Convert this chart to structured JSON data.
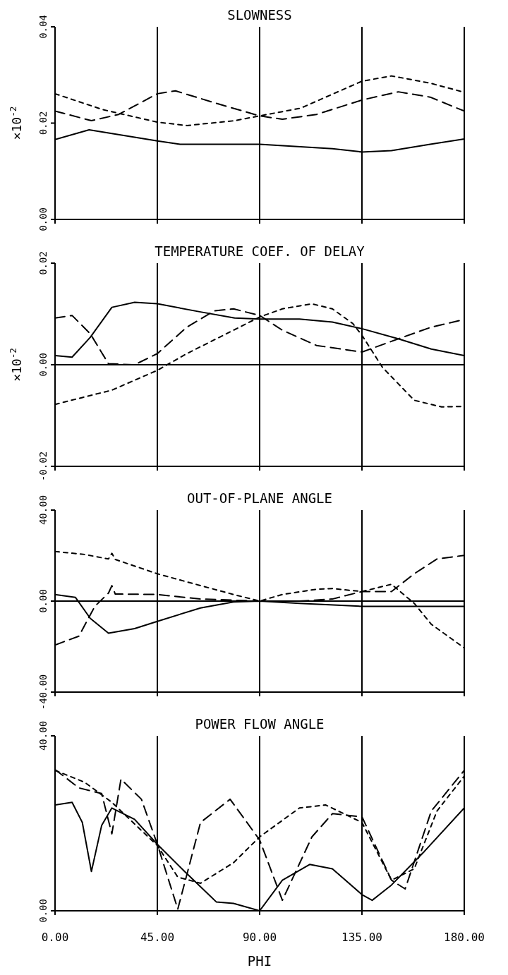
{
  "chart_data": [
    {
      "type": "line",
      "title": "SLOWNESS",
      "ylabel": "×10$^{-2}$",
      "xlim": [
        0,
        180
      ],
      "xticks": [
        0,
        45,
        90,
        135,
        180
      ],
      "ylim": [
        0,
        0.04
      ],
      "yticks": [
        {
          "value": 0,
          "label": "0.00"
        },
        {
          "value": 0.02,
          "label": "0.02"
        },
        {
          "value": 0.04,
          "label": "0.04"
        }
      ],
      "grid": "x",
      "tick_labels": "y",
      "series": [
        {
          "color": "#000000",
          "line_style": "solid",
          "x": [
            0,
            15,
            45,
            55,
            90,
            122,
            135,
            148,
            165,
            180
          ],
          "values": [
            0.0166,
            0.0186,
            0.0163,
            0.0156,
            0.0156,
            0.0147,
            0.014,
            0.0143,
            0.0156,
            0.0167
          ]
        },
        {
          "color": "#000000",
          "line_style": "dashed",
          "x": [
            0,
            16,
            28,
            45,
            53,
            71,
            90,
            100,
            115,
            135,
            151,
            165,
            180
          ],
          "values": [
            0.0225,
            0.0205,
            0.0218,
            0.0261,
            0.0267,
            0.0241,
            0.0215,
            0.0208,
            0.0218,
            0.0248,
            0.0265,
            0.0254,
            0.0225
          ]
        },
        {
          "color": "#000000",
          "line_style": "dashed",
          "x": [
            0,
            21,
            45,
            58,
            79,
            90,
            108,
            135,
            148,
            165,
            180
          ],
          "values": [
            0.0261,
            0.0228,
            0.0202,
            0.0195,
            0.0205,
            0.0215,
            0.0231,
            0.0287,
            0.0298,
            0.0283,
            0.0264
          ]
        }
      ]
    },
    {
      "type": "line",
      "title": "TEMPERATURE COEF. OF DELAY",
      "ylabel": "×10$^{-2}$",
      "xlim": [
        0,
        180
      ],
      "xticks": [
        0,
        45,
        90,
        135,
        180
      ],
      "ylim": [
        -0.02,
        0.02
      ],
      "yticks": [
        {
          "value": -0.02,
          "label": "-0.02"
        },
        {
          "value": 0,
          "label": "0.00"
        },
        {
          "value": 0.02,
          "label": "0.02"
        }
      ],
      "grid": "x",
      "tick_labels": "y",
      "ref_lines": [
        {
          "axis": "y",
          "value": 0
        }
      ],
      "series": [
        {
          "color": "#000000",
          "line_style": "solid",
          "x": [
            0,
            7.5,
            15.5,
            25,
            35,
            45,
            64,
            79,
            90,
            107.5,
            122,
            135,
            151,
            165.5,
            180
          ],
          "values": [
            0.0018,
            0.0015,
            0.0054,
            0.0113,
            0.0123,
            0.012,
            0.0104,
            0.0092,
            0.009,
            0.009,
            0.0084,
            0.0071,
            0.0051,
            0.0031,
            0.0018
          ]
        },
        {
          "color": "#000000",
          "line_style": "dashed",
          "x": [
            0,
            7.5,
            15.5,
            23.5,
            35,
            45,
            58,
            70,
            78.5,
            90,
            100,
            115,
            135,
            151,
            165.5,
            180
          ],
          "values": [
            0.0092,
            0.0097,
            0.0061,
            0.0002,
            0,
            0.0022,
            0.0074,
            0.0106,
            0.011,
            0.0097,
            0.0068,
            0.0038,
            0.0025,
            0.0051,
            0.0074,
            0.0089
          ]
        },
        {
          "color": "#000000",
          "line_style": "dashed",
          "x": [
            0,
            25,
            45,
            58,
            78.5,
            90,
            100,
            113,
            122,
            131,
            135,
            144,
            158,
            170,
            180
          ],
          "values": [
            -0.0078,
            -0.005,
            -0.0011,
            0.0022,
            0.0068,
            0.0094,
            0.011,
            0.012,
            0.011,
            0.0081,
            0.0058,
            -0.0005,
            -0.007,
            -0.0083,
            -0.0082
          ]
        }
      ]
    },
    {
      "type": "line",
      "title": "OUT-OF-PLANE ANGLE",
      "xlim": [
        0,
        180
      ],
      "xticks": [
        0,
        45,
        90,
        135,
        180
      ],
      "ylim": [
        -40,
        40
      ],
      "yticks": [
        {
          "value": -40,
          "label": "-40.00"
        },
        {
          "value": 0,
          "label": "0.00"
        },
        {
          "value": 40,
          "label": "40.00"
        }
      ],
      "grid": "x",
      "tick_labels": "y",
      "ref_lines": [
        {
          "axis": "y",
          "value": 0
        }
      ],
      "series": [
        {
          "color": "#000000",
          "line_style": "solid",
          "x": [
            0,
            9,
            15.5,
            23.5,
            35,
            45,
            64,
            78.5,
            90,
            107.5,
            135,
            180
          ],
          "values": [
            2.9,
            1.6,
            -7.6,
            -14.1,
            -12.1,
            -8.9,
            -3,
            -0.4,
            0,
            -1,
            -2.3,
            -2.3
          ]
        },
        {
          "color": "#000000",
          "line_style": "dashed",
          "x": [
            0,
            10.5,
            17.5,
            23.5,
            25,
            26.5,
            45,
            64,
            90,
            107.5,
            122,
            135,
            148,
            158,
            168,
            180
          ],
          "values": [
            -19.3,
            -15.4,
            -2.3,
            3.5,
            6.8,
            3.1,
            2.9,
            0.9,
            0,
            0,
            0.9,
            4.2,
            4.2,
            12,
            18.5,
            20.1
          ]
        },
        {
          "color": "#000000",
          "line_style": "dashed",
          "x": [
            0,
            13,
            23.5,
            25,
            26.5,
            45,
            64,
            78.5,
            90,
            100,
            115,
            122,
            135,
            148,
            158,
            165.5,
            180
          ],
          "values": [
            21.8,
            20.5,
            18.5,
            21,
            18.3,
            12,
            6.8,
            2.9,
            0,
            2.9,
            5.2,
            5.5,
            4.2,
            7.4,
            -1,
            -10.2,
            -20.6
          ]
        }
      ]
    },
    {
      "type": "line",
      "title": "POWER FLOW ANGLE",
      "xlabel": "PHI",
      "xlim": [
        0,
        180
      ],
      "xticks": [
        {
          "value": 0,
          "label": "0.00"
        },
        {
          "value": 45,
          "label": "45.00"
        },
        {
          "value": 90,
          "label": "90.00"
        },
        {
          "value": 135,
          "label": "135.00"
        },
        {
          "value": 180,
          "label": "180.00"
        }
      ],
      "ylim": [
        0,
        40
      ],
      "yticks": [
        {
          "value": 0,
          "label": "0.00"
        },
        {
          "value": 40,
          "label": "40.00"
        }
      ],
      "grid": "x",
      "series": [
        {
          "color": "#000000",
          "line_style": "solid",
          "x": [
            0,
            7.5,
            12,
            16,
            20.5,
            25,
            35,
            45,
            57,
            71,
            78.5,
            90,
            100,
            112,
            122,
            135,
            139.5,
            148,
            162.5,
            180
          ],
          "values": [
            24.2,
            24.8,
            20.2,
            9,
            19.5,
            23.5,
            20.9,
            15.2,
            9,
            2,
            1.7,
            0,
            7,
            10.6,
            9.6,
            3.7,
            2.4,
            5.9,
            13.6,
            23.5
          ]
        },
        {
          "color": "#000000",
          "line_style": "dashed",
          "x": [
            0,
            10.5,
            20.5,
            25,
            29,
            38,
            45,
            54,
            64,
            77,
            90,
            100,
            113,
            122,
            135,
            148,
            154,
            165.5,
            180
          ],
          "values": [
            32.3,
            28.1,
            26.8,
            17.6,
            30.1,
            25.5,
            15.2,
            0.4,
            20.2,
            25.5,
            16.2,
            2.4,
            16.9,
            22.2,
            21.5,
            7,
            5,
            22.8,
            32.1
          ]
        },
        {
          "color": "#000000",
          "line_style": "dashed",
          "x": [
            0,
            13,
            25,
            45,
            54,
            64,
            78.5,
            90,
            107.5,
            119,
            135,
            148,
            158,
            168,
            180
          ],
          "values": [
            32.1,
            29.4,
            24.8,
            14.9,
            7.7,
            6.3,
            11,
            16.9,
            23.5,
            24.2,
            20.2,
            7,
            9.6,
            22.8,
            30.8
          ]
        }
      ]
    }
  ]
}
